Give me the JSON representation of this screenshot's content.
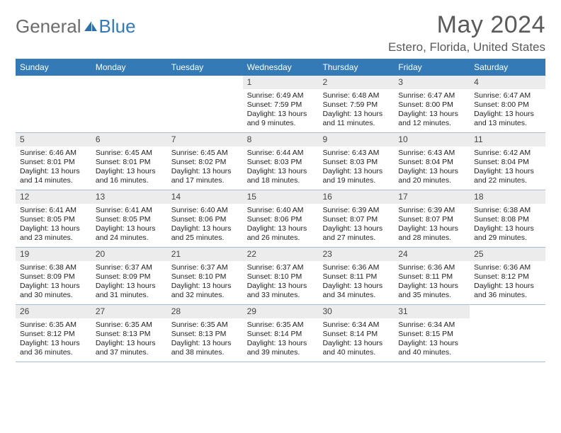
{
  "logo": {
    "general": "General",
    "blue": "Blue"
  },
  "header": {
    "month": "May 2024",
    "location": "Estero, Florida, United States"
  },
  "colors": {
    "header_bg": "#337ab7",
    "text": "#5a5a5a",
    "daynum_bg": "#ececec",
    "border": "#a6bcd6"
  },
  "dow": [
    "Sunday",
    "Monday",
    "Tuesday",
    "Wednesday",
    "Thursday",
    "Friday",
    "Saturday"
  ],
  "weeks": [
    [
      null,
      null,
      null,
      {
        "n": "1",
        "sr": "Sunrise: 6:49 AM",
        "ss": "Sunset: 7:59 PM",
        "d1": "Daylight: 13 hours",
        "d2": "and 9 minutes."
      },
      {
        "n": "2",
        "sr": "Sunrise: 6:48 AM",
        "ss": "Sunset: 7:59 PM",
        "d1": "Daylight: 13 hours",
        "d2": "and 11 minutes."
      },
      {
        "n": "3",
        "sr": "Sunrise: 6:47 AM",
        "ss": "Sunset: 8:00 PM",
        "d1": "Daylight: 13 hours",
        "d2": "and 12 minutes."
      },
      {
        "n": "4",
        "sr": "Sunrise: 6:47 AM",
        "ss": "Sunset: 8:00 PM",
        "d1": "Daylight: 13 hours",
        "d2": "and 13 minutes."
      }
    ],
    [
      {
        "n": "5",
        "sr": "Sunrise: 6:46 AM",
        "ss": "Sunset: 8:01 PM",
        "d1": "Daylight: 13 hours",
        "d2": "and 14 minutes."
      },
      {
        "n": "6",
        "sr": "Sunrise: 6:45 AM",
        "ss": "Sunset: 8:01 PM",
        "d1": "Daylight: 13 hours",
        "d2": "and 16 minutes."
      },
      {
        "n": "7",
        "sr": "Sunrise: 6:45 AM",
        "ss": "Sunset: 8:02 PM",
        "d1": "Daylight: 13 hours",
        "d2": "and 17 minutes."
      },
      {
        "n": "8",
        "sr": "Sunrise: 6:44 AM",
        "ss": "Sunset: 8:03 PM",
        "d1": "Daylight: 13 hours",
        "d2": "and 18 minutes."
      },
      {
        "n": "9",
        "sr": "Sunrise: 6:43 AM",
        "ss": "Sunset: 8:03 PM",
        "d1": "Daylight: 13 hours",
        "d2": "and 19 minutes."
      },
      {
        "n": "10",
        "sr": "Sunrise: 6:43 AM",
        "ss": "Sunset: 8:04 PM",
        "d1": "Daylight: 13 hours",
        "d2": "and 20 minutes."
      },
      {
        "n": "11",
        "sr": "Sunrise: 6:42 AM",
        "ss": "Sunset: 8:04 PM",
        "d1": "Daylight: 13 hours",
        "d2": "and 22 minutes."
      }
    ],
    [
      {
        "n": "12",
        "sr": "Sunrise: 6:41 AM",
        "ss": "Sunset: 8:05 PM",
        "d1": "Daylight: 13 hours",
        "d2": "and 23 minutes."
      },
      {
        "n": "13",
        "sr": "Sunrise: 6:41 AM",
        "ss": "Sunset: 8:05 PM",
        "d1": "Daylight: 13 hours",
        "d2": "and 24 minutes."
      },
      {
        "n": "14",
        "sr": "Sunrise: 6:40 AM",
        "ss": "Sunset: 8:06 PM",
        "d1": "Daylight: 13 hours",
        "d2": "and 25 minutes."
      },
      {
        "n": "15",
        "sr": "Sunrise: 6:40 AM",
        "ss": "Sunset: 8:06 PM",
        "d1": "Daylight: 13 hours",
        "d2": "and 26 minutes."
      },
      {
        "n": "16",
        "sr": "Sunrise: 6:39 AM",
        "ss": "Sunset: 8:07 PM",
        "d1": "Daylight: 13 hours",
        "d2": "and 27 minutes."
      },
      {
        "n": "17",
        "sr": "Sunrise: 6:39 AM",
        "ss": "Sunset: 8:07 PM",
        "d1": "Daylight: 13 hours",
        "d2": "and 28 minutes."
      },
      {
        "n": "18",
        "sr": "Sunrise: 6:38 AM",
        "ss": "Sunset: 8:08 PM",
        "d1": "Daylight: 13 hours",
        "d2": "and 29 minutes."
      }
    ],
    [
      {
        "n": "19",
        "sr": "Sunrise: 6:38 AM",
        "ss": "Sunset: 8:09 PM",
        "d1": "Daylight: 13 hours",
        "d2": "and 30 minutes."
      },
      {
        "n": "20",
        "sr": "Sunrise: 6:37 AM",
        "ss": "Sunset: 8:09 PM",
        "d1": "Daylight: 13 hours",
        "d2": "and 31 minutes."
      },
      {
        "n": "21",
        "sr": "Sunrise: 6:37 AM",
        "ss": "Sunset: 8:10 PM",
        "d1": "Daylight: 13 hours",
        "d2": "and 32 minutes."
      },
      {
        "n": "22",
        "sr": "Sunrise: 6:37 AM",
        "ss": "Sunset: 8:10 PM",
        "d1": "Daylight: 13 hours",
        "d2": "and 33 minutes."
      },
      {
        "n": "23",
        "sr": "Sunrise: 6:36 AM",
        "ss": "Sunset: 8:11 PM",
        "d1": "Daylight: 13 hours",
        "d2": "and 34 minutes."
      },
      {
        "n": "24",
        "sr": "Sunrise: 6:36 AM",
        "ss": "Sunset: 8:11 PM",
        "d1": "Daylight: 13 hours",
        "d2": "and 35 minutes."
      },
      {
        "n": "25",
        "sr": "Sunrise: 6:36 AM",
        "ss": "Sunset: 8:12 PM",
        "d1": "Daylight: 13 hours",
        "d2": "and 36 minutes."
      }
    ],
    [
      {
        "n": "26",
        "sr": "Sunrise: 6:35 AM",
        "ss": "Sunset: 8:12 PM",
        "d1": "Daylight: 13 hours",
        "d2": "and 36 minutes."
      },
      {
        "n": "27",
        "sr": "Sunrise: 6:35 AM",
        "ss": "Sunset: 8:13 PM",
        "d1": "Daylight: 13 hours",
        "d2": "and 37 minutes."
      },
      {
        "n": "28",
        "sr": "Sunrise: 6:35 AM",
        "ss": "Sunset: 8:13 PM",
        "d1": "Daylight: 13 hours",
        "d2": "and 38 minutes."
      },
      {
        "n": "29",
        "sr": "Sunrise: 6:35 AM",
        "ss": "Sunset: 8:14 PM",
        "d1": "Daylight: 13 hours",
        "d2": "and 39 minutes."
      },
      {
        "n": "30",
        "sr": "Sunrise: 6:34 AM",
        "ss": "Sunset: 8:14 PM",
        "d1": "Daylight: 13 hours",
        "d2": "and 40 minutes."
      },
      {
        "n": "31",
        "sr": "Sunrise: 6:34 AM",
        "ss": "Sunset: 8:15 PM",
        "d1": "Daylight: 13 hours",
        "d2": "and 40 minutes."
      },
      null
    ]
  ]
}
